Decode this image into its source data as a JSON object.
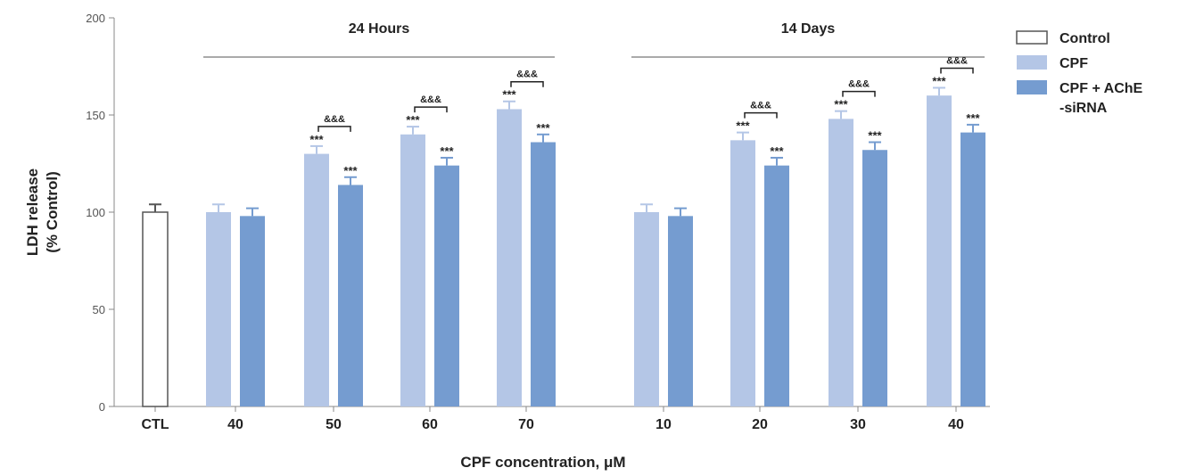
{
  "colors": {
    "control_fill": "#ffffff",
    "control_stroke": "#555555",
    "cpf": "#b4c6e6",
    "cpf_sirna": "#759cd0",
    "axis": "#888888",
    "text": "#222222"
  },
  "chart_data": {
    "type": "bar",
    "ylabel_line1": "LDH release",
    "ylabel_line2": "(% Control)",
    "xlabel": "CPF concentration, μM",
    "ylim": [
      0,
      200
    ],
    "yticks": [
      0,
      50,
      100,
      150,
      200
    ],
    "grid": false,
    "legend_position": "right",
    "legend": [
      {
        "name": "Control",
        "key": "control"
      },
      {
        "name": "CPF",
        "key": "cpf"
      },
      {
        "name": "CPF + AChE",
        "name2": "-siRNA",
        "key": "cpf_sirna"
      }
    ],
    "control": {
      "category": "CTL",
      "value": 100,
      "error": 4
    },
    "groups": [
      {
        "label": "24 Hours",
        "categories": [
          "40",
          "50",
          "60",
          "70"
        ],
        "series": [
          {
            "name": "CPF",
            "key": "cpf",
            "values": [
              100,
              130,
              140,
              153
            ],
            "errors": [
              4,
              4,
              4,
              4
            ],
            "sig": [
              "",
              "***",
              "***",
              "***"
            ]
          },
          {
            "name": "CPF + AChE -siRNA",
            "key": "cpf_sirna",
            "values": [
              98,
              114,
              124,
              136
            ],
            "errors": [
              4,
              4,
              4,
              4
            ],
            "sig": [
              "",
              "***",
              "***",
              "***"
            ]
          }
        ],
        "pair_sig": [
          "",
          "&&&",
          "&&&",
          "&&&"
        ]
      },
      {
        "label": "14 Days",
        "categories": [
          "10",
          "20",
          "30",
          "40"
        ],
        "series": [
          {
            "name": "CPF",
            "key": "cpf",
            "values": [
              100,
              137,
              148,
              160
            ],
            "errors": [
              4,
              4,
              4,
              4
            ],
            "sig": [
              "",
              "***",
              "***",
              "***"
            ]
          },
          {
            "name": "CPF + AChE -siRNA",
            "key": "cpf_sirna",
            "values": [
              98,
              124,
              132,
              141
            ],
            "errors": [
              4,
              4,
              4,
              4
            ],
            "sig": [
              "",
              "***",
              "***",
              "***"
            ]
          }
        ],
        "pair_sig": [
          "",
          "&&&",
          "&&&",
          "&&&"
        ]
      }
    ]
  }
}
